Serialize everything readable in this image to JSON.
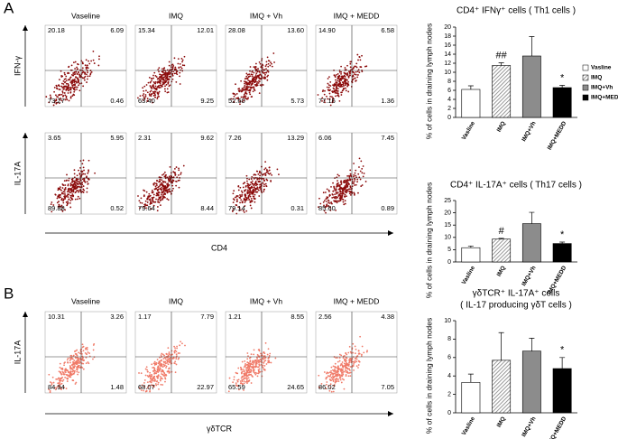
{
  "panel_labels": [
    "A",
    "B"
  ],
  "flow": {
    "columns": [
      "Vaseline",
      "IMQ",
      "IMQ + Vh",
      "IMQ + MEDD"
    ],
    "panel_a": {
      "x_label": "CD4",
      "rows": [
        {
          "label": "IFN-γ",
          "quadrants": [
            [
              "20.18",
              "6.09",
              "73.27",
              "0.46"
            ],
            [
              "15.34",
              "12.01",
              "63.40",
              "9.25"
            ],
            [
              "28.08",
              "13.60",
              "52.60",
              "5.73"
            ],
            [
              "14.90",
              "6.58",
              "77.16",
              "1.36"
            ]
          ]
        },
        {
          "label": "IL-17A",
          "quadrants": [
            [
              "3.65",
              "5.95",
              "89.88",
              "0.52"
            ],
            [
              "2.31",
              "9.62",
              "79.64",
              "8.44"
            ],
            [
              "7.26",
              "13.29",
              "79.14",
              "0.31"
            ],
            [
              "6.06",
              "7.45",
              "85.60",
              "0.89"
            ]
          ]
        }
      ]
    },
    "panel_b": {
      "x_label": "γδTCR",
      "rows": [
        {
          "label": "IL-17A",
          "quadrants": [
            [
              "10.31",
              "3.26",
              "84.94",
              "1.48"
            ],
            [
              "1.17",
              "7.79",
              "68.07",
              "22.97"
            ],
            [
              "1.21",
              "8.55",
              "65.59",
              "24.65"
            ],
            [
              "2.56",
              "4.38",
              "86.02",
              "7.05"
            ]
          ]
        }
      ]
    }
  },
  "chart_data": [
    {
      "type": "bar",
      "title": "CD4⁺ IFNγ⁺ cells ( Th1 cells )",
      "y_label": "% of cells in draining lymph nodes",
      "categories": [
        "Vasline",
        "IMQ",
        "IMQ+Vh",
        "IMQ+MEDD"
      ],
      "values": [
        6.2,
        11.5,
        13.6,
        6.6
      ],
      "errors": [
        0.8,
        0.6,
        4.3,
        0.5
      ],
      "colors": [
        "#ffffff",
        "#cccccc",
        "#8c8c8c",
        "#000000"
      ],
      "hatch": [
        false,
        true,
        false,
        false
      ],
      "annotations": [
        null,
        "##",
        null,
        "*"
      ],
      "ylim": [
        0,
        20
      ],
      "yticks": [
        0,
        2,
        4,
        6,
        8,
        10,
        12,
        14,
        16,
        18,
        20
      ],
      "legend": [
        "Vasline",
        "IMQ",
        "IMQ+Vh",
        "IMQ+MEDD"
      ]
    },
    {
      "type": "bar",
      "title": "CD4⁺ IL-17A⁺ cells ( Th17 cells )",
      "y_label": "% of cells in draining lymph nodes",
      "categories": [
        "Vasline",
        "IMQ",
        "IMQ+Vh",
        "IMQ+MEDD"
      ],
      "values": [
        5.8,
        9.3,
        15.6,
        7.5
      ],
      "errors": [
        0.7,
        0.3,
        4.6,
        0.6
      ],
      "colors": [
        "#ffffff",
        "#cccccc",
        "#8c8c8c",
        "#000000"
      ],
      "hatch": [
        false,
        true,
        false,
        false
      ],
      "annotations": [
        null,
        "#",
        null,
        "*"
      ],
      "ylim": [
        0,
        25
      ],
      "yticks": [
        0,
        5,
        10,
        15,
        20,
        25
      ]
    },
    {
      "type": "bar",
      "title": "γδTCR⁺ IL-17A⁺ cells",
      "subtitle": "( IL-17 producing γδT cells )",
      "y_label": "% of cells in draining lymph nodes",
      "categories": [
        "Vasline",
        "IMQ",
        "IMQ+Vh",
        "IMQ+MEDD"
      ],
      "values": [
        3.3,
        5.7,
        6.7,
        4.8
      ],
      "errors": [
        0.9,
        3.0,
        1.4,
        1.2
      ],
      "colors": [
        "#ffffff",
        "#cccccc",
        "#8c8c8c",
        "#000000"
      ],
      "hatch": [
        false,
        true,
        false,
        false
      ],
      "annotations": [
        null,
        null,
        null,
        "*"
      ],
      "ylim": [
        0,
        10
      ],
      "yticks": [
        0,
        2,
        4,
        6,
        8,
        10
      ]
    }
  ]
}
